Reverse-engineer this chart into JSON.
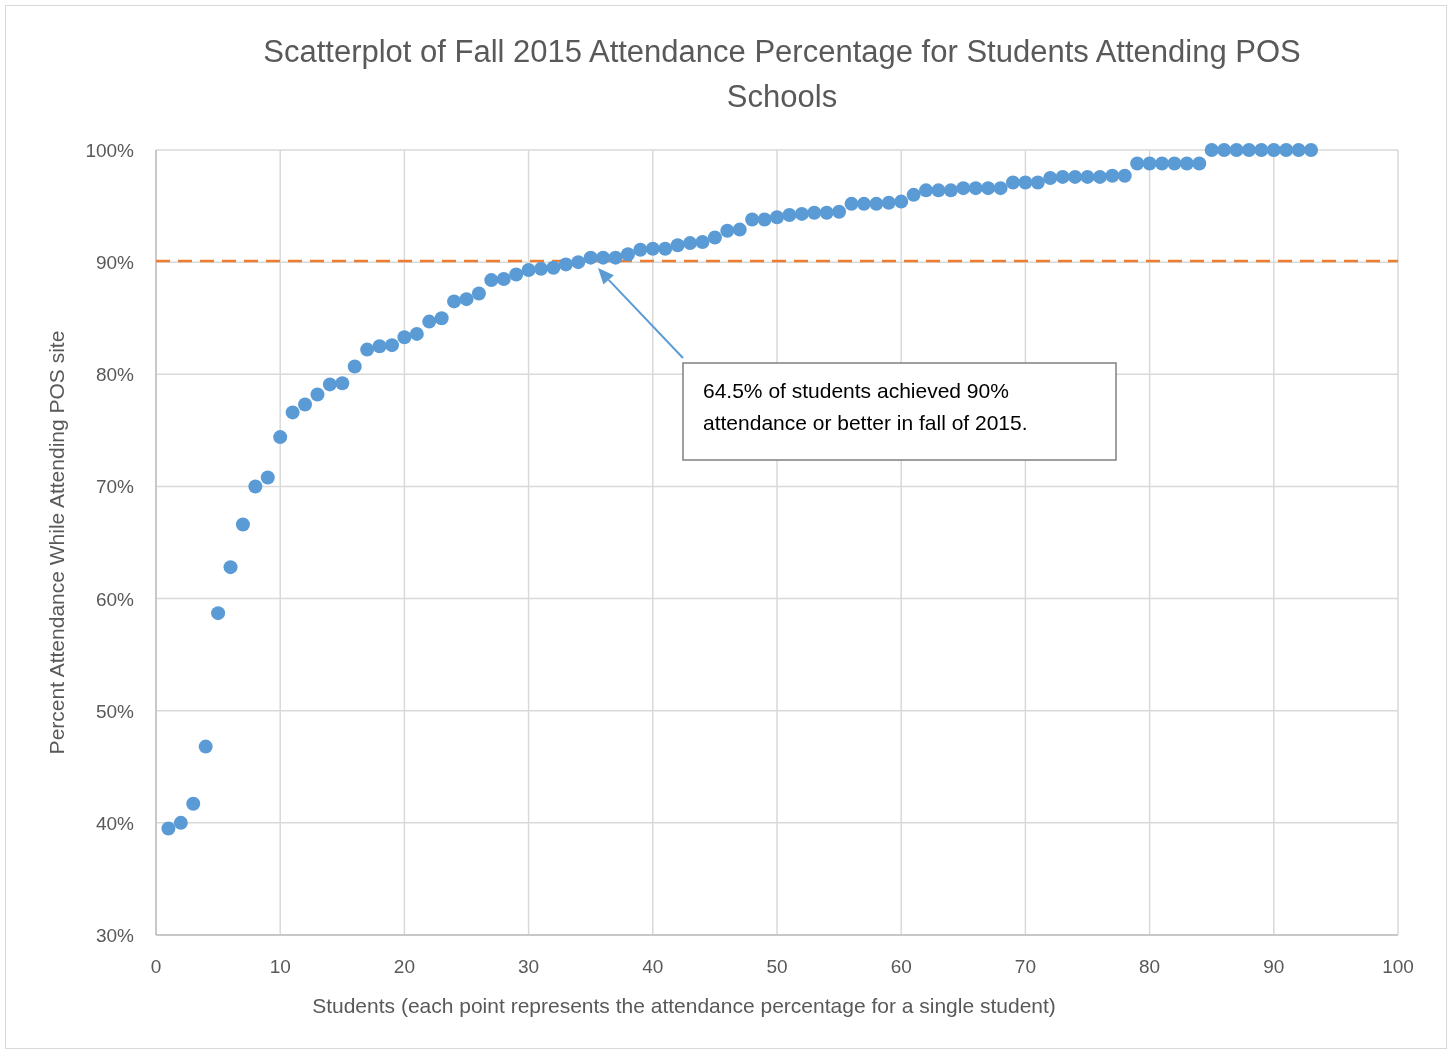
{
  "chart_data": {
    "type": "scatter",
    "title": "Scatterplot of Fall 2015 Attendance Percentage for Students Attending POS Schools",
    "xlabel": "Students (each point represents the attendance percentage for a single student)",
    "ylabel": "Percent Attendance While Attending POS site",
    "x": [
      1,
      2,
      3,
      4,
      5,
      6,
      7,
      8,
      9,
      10,
      11,
      12,
      13,
      14,
      15,
      16,
      17,
      18,
      19,
      20,
      21,
      22,
      23,
      24,
      25,
      26,
      27,
      28,
      29,
      30,
      31,
      32,
      33,
      34,
      35,
      36,
      37,
      38,
      39,
      40,
      41,
      42,
      43,
      44,
      45,
      46,
      47,
      48,
      49,
      50,
      51,
      52,
      53,
      54,
      55,
      56,
      57,
      58,
      59,
      60,
      61,
      62,
      63,
      64,
      65,
      66,
      67,
      68,
      69,
      70,
      71,
      72,
      73,
      74,
      75,
      76,
      77,
      78,
      79,
      80,
      81,
      82,
      83,
      84,
      85,
      86,
      87,
      88,
      89,
      90,
      91,
      92,
      93
    ],
    "series": [
      {
        "color": "#5b9bd5",
        "values": [
          39.5,
          40.0,
          41.7,
          46.8,
          58.7,
          62.8,
          66.6,
          70.0,
          70.8,
          74.4,
          76.6,
          77.3,
          78.2,
          79.1,
          79.2,
          80.7,
          82.2,
          82.5,
          82.6,
          83.3,
          83.6,
          84.7,
          85.0,
          86.5,
          86.7,
          87.2,
          88.4,
          88.5,
          88.9,
          89.3,
          89.4,
          89.5,
          89.8,
          90.0,
          90.4,
          90.4,
          90.4,
          90.7,
          91.1,
          91.2,
          91.2,
          91.5,
          91.7,
          91.8,
          92.2,
          92.8,
          92.9,
          93.8,
          93.8,
          94.0,
          94.2,
          94.3,
          94.4,
          94.4,
          94.5,
          95.2,
          95.2,
          95.2,
          95.3,
          95.4,
          96.0,
          96.4,
          96.4,
          96.4,
          96.6,
          96.6,
          96.6,
          96.6,
          97.1,
          97.1,
          97.1,
          97.5,
          97.6,
          97.6,
          97.6,
          97.6,
          97.7,
          97.7,
          98.8,
          98.8,
          98.8,
          98.8,
          98.8,
          98.8,
          100,
          100,
          100,
          100,
          100,
          100,
          100,
          100,
          100
        ]
      }
    ],
    "xlim": [
      0,
      100
    ],
    "xticks": [
      0,
      10,
      20,
      30,
      40,
      50,
      60,
      70,
      80,
      90,
      100
    ],
    "ylim": [
      30,
      100
    ],
    "yticks": [
      {
        "value": 30,
        "label": "30%"
      },
      {
        "value": 40,
        "label": "40%"
      },
      {
        "value": 50,
        "label": "50%"
      },
      {
        "value": 60,
        "label": "60%"
      },
      {
        "value": 70,
        "label": "70%"
      },
      {
        "value": 80,
        "label": "80%"
      },
      {
        "value": 90,
        "label": "90%"
      },
      {
        "value": 100,
        "label": "100%"
      }
    ],
    "grid": true,
    "marker": "circle",
    "ref_lines": [
      {
        "axis": "y",
        "value": 90.1,
        "color": "#ed7d31",
        "line_style": "dashed"
      }
    ],
    "annotations": [
      "64.5% of students achieved 90% attendance or better in fall of 2015."
    ]
  }
}
